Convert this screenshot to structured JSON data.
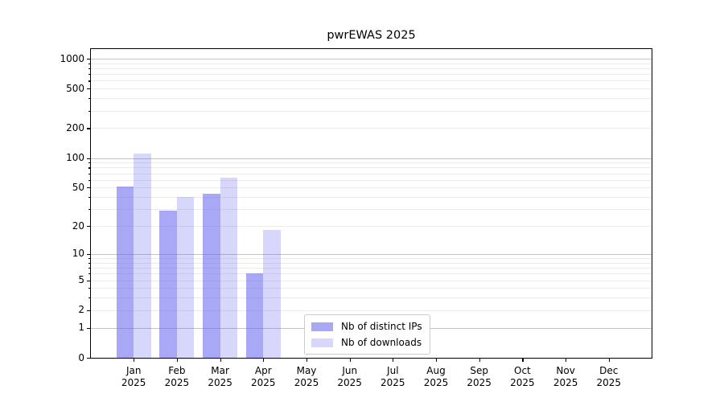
{
  "title": "pwrEWAS 2025",
  "legend": {
    "items": [
      {
        "label": "Nb of distinct IPs"
      },
      {
        "label": "Nb of downloads"
      }
    ]
  },
  "chart_data": {
    "type": "bar",
    "title": "pwrEWAS 2025",
    "yscale": "log1p",
    "ylim": [
      0,
      1249
    ],
    "yticks": [
      0,
      1,
      2,
      5,
      10,
      20,
      50,
      100,
      200,
      500,
      1000
    ],
    "ytick_labels": [
      "0",
      "1",
      "2",
      "5",
      "10",
      "20",
      "50",
      "100",
      "200",
      "500",
      "1000"
    ],
    "major_grid": [
      1,
      10,
      100,
      1000
    ],
    "minor_ticks": [
      2,
      3,
      4,
      5,
      6,
      7,
      8,
      9,
      20,
      30,
      40,
      50,
      60,
      70,
      80,
      90,
      200,
      300,
      400,
      500,
      600,
      700,
      800,
      900
    ],
    "categories": [
      "Jan",
      "Feb",
      "Mar",
      "Apr",
      "May",
      "Jun",
      "Jul",
      "Aug",
      "Sep",
      "Oct",
      "Nov",
      "Dec"
    ],
    "x_year": "2025",
    "x_padding": 0.99,
    "bar_width": 0.4,
    "grid": true,
    "legend_position": "lower center",
    "series": [
      {
        "name": "Nb of distinct IPs",
        "color": "#6666f0",
        "alpha": 0.57,
        "values": [
          51,
          29,
          43,
          6,
          0,
          0,
          0,
          0,
          0,
          0,
          0,
          0
        ]
      },
      {
        "name": "Nb of downloads",
        "color": "#6666f0",
        "alpha": 0.26,
        "values": [
          110,
          40,
          63,
          18,
          0,
          0,
          0,
          0,
          0,
          0,
          0,
          0
        ]
      }
    ]
  }
}
